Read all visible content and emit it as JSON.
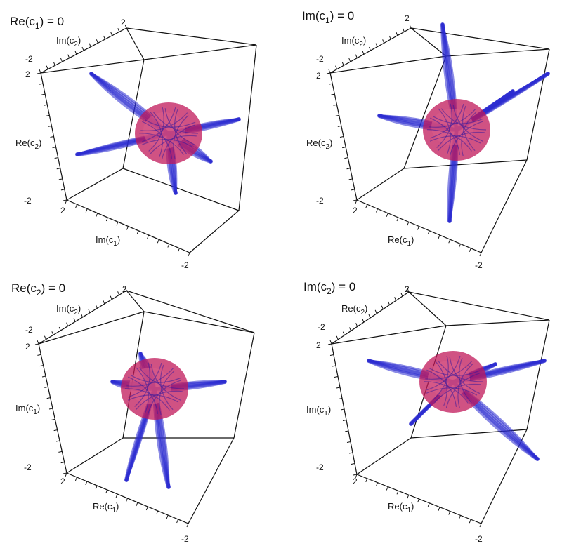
{
  "panels": [
    {
      "title_main": "Re(c",
      "title_sub": "1",
      "title_tail": ") = 0",
      "top_label": {
        "main": "Im(c",
        "sub": "2",
        "tail": ")"
      },
      "left_label": {
        "main": "Re(c",
        "sub": "2",
        "tail": ")"
      },
      "bottom_label": {
        "main": "Im(c",
        "sub": "1",
        "tail": ")"
      },
      "ticks": {
        "top_right": "2",
        "top_left": "-2",
        "left_top": "2",
        "left_bottom": "-2",
        "bottom_left": "2",
        "bottom_right": "-2"
      }
    },
    {
      "title_main": "Im(c",
      "title_sub": "1",
      "title_tail": ") = 0",
      "top_label": {
        "main": "Im(c",
        "sub": "2",
        "tail": ")"
      },
      "left_label": {
        "main": "Re(c",
        "sub": "2",
        "tail": ")"
      },
      "bottom_label": {
        "main": "Re(c",
        "sub": "1",
        "tail": ")"
      },
      "ticks": {
        "top_right": "2",
        "top_left": "-2",
        "left_top": "2",
        "left_bottom": "-2",
        "bottom_left": "2",
        "bottom_right": "-2"
      }
    },
    {
      "title_main": "Re(c",
      "title_sub": "2",
      "title_tail": ") = 0",
      "top_label": {
        "main": "Im(c",
        "sub": "2",
        "tail": ")"
      },
      "left_label": {
        "main": "Im(c",
        "sub": "1",
        "tail": ")"
      },
      "bottom_label": {
        "main": "Re(c",
        "sub": "1",
        "tail": ")"
      },
      "ticks": {
        "top_right": "2",
        "top_left": "-2",
        "left_top": "2",
        "left_bottom": "-2",
        "bottom_left": "2",
        "bottom_right": "-2"
      }
    },
    {
      "title_main": "Im(c",
      "title_sub": "2",
      "title_tail": ") = 0",
      "top_label": {
        "main": "Re(c",
        "sub": "2",
        "tail": ")"
      },
      "left_label": {
        "main": "Im(c",
        "sub": "1",
        "tail": ")"
      },
      "bottom_label": {
        "main": "Re(c",
        "sub": "1",
        "tail": ")"
      },
      "ticks": {
        "top_right": "2",
        "top_left": "-2",
        "left_top": "2",
        "left_bottom": "-2",
        "bottom_left": "2",
        "bottom_right": "-2"
      }
    }
  ],
  "colors": {
    "tube": "#2a2ad0",
    "core": "#c0185a",
    "edge": "#111111"
  }
}
